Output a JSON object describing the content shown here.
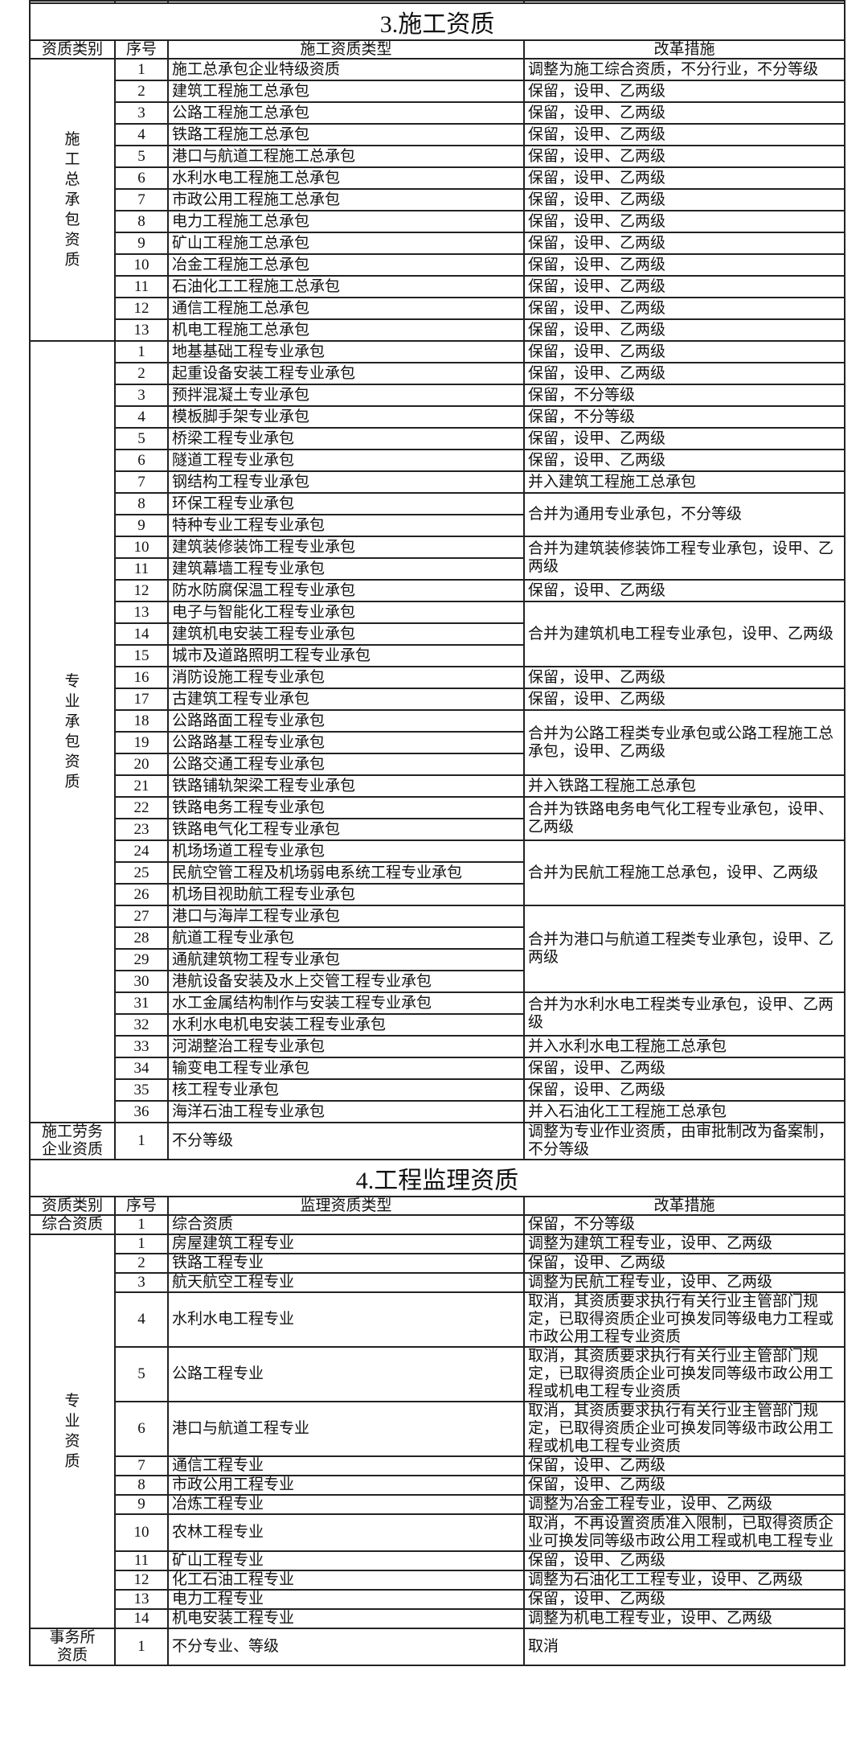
{
  "sections": [
    {
      "title": "3.施工资质",
      "headers": [
        "资质类别",
        "序号",
        "施工资质类型",
        "改革措施"
      ],
      "groups": [
        {
          "category": "施工总承包资质",
          "vertical": true,
          "rows": [
            {
              "no": "1",
              "type": "施工总承包企业特级资质",
              "measure": "调整为施工综合资质，不分行业，不分等级"
            },
            {
              "no": "2",
              "type": "建筑工程施工总承包",
              "measure": "保留，设甲、乙两级"
            },
            {
              "no": "3",
              "type": "公路工程施工总承包",
              "measure": "保留，设甲、乙两级"
            },
            {
              "no": "4",
              "type": "铁路工程施工总承包",
              "measure": "保留，设甲、乙两级"
            },
            {
              "no": "5",
              "type": "港口与航道工程施工总承包",
              "measure": "保留，设甲、乙两级"
            },
            {
              "no": "6",
              "type": "水利水电工程施工总承包",
              "measure": "保留，设甲、乙两级"
            },
            {
              "no": "7",
              "type": "市政公用工程施工总承包",
              "measure": "保留，设甲、乙两级"
            },
            {
              "no": "8",
              "type": "电力工程施工总承包",
              "measure": "保留，设甲、乙两级"
            },
            {
              "no": "9",
              "type": "矿山工程施工总承包",
              "measure": "保留，设甲、乙两级"
            },
            {
              "no": "10",
              "type": "冶金工程施工总承包",
              "measure": "保留，设甲、乙两级"
            },
            {
              "no": "11",
              "type": "石油化工工程施工总承包",
              "measure": "保留，设甲、乙两级"
            },
            {
              "no": "12",
              "type": "通信工程施工总承包",
              "measure": "保留，设甲、乙两级"
            },
            {
              "no": "13",
              "type": "机电工程施工总承包",
              "measure": "保留，设甲、乙两级"
            }
          ]
        },
        {
          "category": "专业承包资质",
          "vertical": true,
          "rows": [
            {
              "no": "1",
              "type": "地基基础工程专业承包",
              "measure": "保留，设甲、乙两级"
            },
            {
              "no": "2",
              "type": "起重设备安装工程专业承包",
              "measure": "保留，设甲、乙两级"
            },
            {
              "no": "3",
              "type": "预拌混凝土专业承包",
              "measure": "保留，不分等级"
            },
            {
              "no": "4",
              "type": "模板脚手架专业承包",
              "measure": "保留，不分等级"
            },
            {
              "no": "5",
              "type": "桥梁工程专业承包",
              "measure": "保留，设甲、乙两级"
            },
            {
              "no": "6",
              "type": "隧道工程专业承包",
              "measure": "保留，设甲、乙两级"
            },
            {
              "no": "7",
              "type": "钢结构工程专业承包",
              "measure": "并入建筑工程施工总承包"
            },
            {
              "no": "8",
              "type": "环保工程专业承包",
              "measure": "合并为通用专业承包，不分等级"
            },
            {
              "no": "9",
              "type": "特种专业工程专业承包"
            },
            {
              "no": "10",
              "type": "建筑装修装饰工程专业承包",
              "measure": "合并为建筑装修装饰工程专业承包，设甲、乙两级"
            },
            {
              "no": "11",
              "type": "建筑幕墙工程专业承包"
            },
            {
              "no": "12",
              "type": "防水防腐保温工程专业承包",
              "measure": "保留，设甲、乙两级"
            },
            {
              "no": "13",
              "type": "电子与智能化工程专业承包",
              "measure": "合并为建筑机电工程专业承包，设甲、乙两级"
            },
            {
              "no": "14",
              "type": "建筑机电安装工程专业承包"
            },
            {
              "no": "15",
              "type": "城市及道路照明工程专业承包"
            },
            {
              "no": "16",
              "type": "消防设施工程专业承包",
              "measure": "保留，设甲、乙两级"
            },
            {
              "no": "17",
              "type": "古建筑工程专业承包",
              "measure": "保留，设甲、乙两级"
            },
            {
              "no": "18",
              "type": "公路路面工程专业承包",
              "measure": "合并为公路工程类专业承包或公路工程施工总承包，设甲、乙两级"
            },
            {
              "no": "19",
              "type": "公路路基工程专业承包"
            },
            {
              "no": "20",
              "type": "公路交通工程专业承包"
            },
            {
              "no": "21",
              "type": "铁路铺轨架梁工程专业承包",
              "measure": "并入铁路工程施工总承包"
            },
            {
              "no": "22",
              "type": "铁路电务工程专业承包",
              "measure": "合并为铁路电务电气化工程专业承包，设甲、乙两级"
            },
            {
              "no": "23",
              "type": "铁路电气化工程专业承包"
            },
            {
              "no": "24",
              "type": "机场场道工程专业承包",
              "measure": "合并为民航工程施工总承包，设甲、乙两级"
            },
            {
              "no": "25",
              "type": "民航空管工程及机场弱电系统工程专业承包"
            },
            {
              "no": "26",
              "type": "机场目视助航工程专业承包"
            },
            {
              "no": "27",
              "type": "港口与海岸工程专业承包",
              "measure": "合并为港口与航道工程类专业承包，设甲、乙两级"
            },
            {
              "no": "28",
              "type": "航道工程专业承包"
            },
            {
              "no": "29",
              "type": "通航建筑物工程专业承包"
            },
            {
              "no": "30",
              "type": "港航设备安装及水上交管工程专业承包"
            },
            {
              "no": "31",
              "type": "水工金属结构制作与安装工程专业承包",
              "measure": "合并为水利水电工程类专业承包，设甲、乙两级"
            },
            {
              "no": "32",
              "type": "水利水电机电安装工程专业承包"
            },
            {
              "no": "33",
              "type": "河湖整治工程专业承包",
              "measure": "并入水利水电工程施工总承包"
            },
            {
              "no": "34",
              "type": "输变电工程专业承包",
              "measure": "保留，设甲、乙两级"
            },
            {
              "no": "35",
              "type": "核工程专业承包",
              "measure": "保留，设甲、乙两级"
            },
            {
              "no": "36",
              "type": "海洋石油工程专业承包",
              "measure": "并入石油化工工程施工总承包"
            }
          ]
        },
        {
          "category": "施工劳务\n企业资质",
          "vertical": false,
          "rows": [
            {
              "no": "1",
              "type": "不分等级",
              "measure": "调整为专业作业资质，由审批制改为备案制，不分等级"
            }
          ]
        }
      ]
    },
    {
      "title": "4.工程监理资质",
      "headers": [
        "资质类别",
        "序号",
        "监理资质类型",
        "改革措施"
      ],
      "groups": [
        {
          "category": "综合资质",
          "vertical": false,
          "rows": [
            {
              "no": "1",
              "type": "综合资质",
              "measure": "保留，不分等级"
            }
          ]
        },
        {
          "category": "专业资质",
          "vertical": true,
          "rows": [
            {
              "no": "1",
              "type": "房屋建筑工程专业",
              "measure": "调整为建筑工程专业，设甲、乙两级"
            },
            {
              "no": "2",
              "type": "铁路工程专业",
              "measure": "保留，设甲、乙两级"
            },
            {
              "no": "3",
              "type": "航天航空工程专业",
              "measure": "调整为民航工程专业，设甲、乙两级"
            },
            {
              "no": "4",
              "type": "水利水电工程专业",
              "measure": "取消，其资质要求执行有关行业主管部门规定，已取得资质企业可换发同等级电力工程或市政公用工程专业资质"
            },
            {
              "no": "5",
              "type": "公路工程专业",
              "measure": "取消，其资质要求执行有关行业主管部门规定，已取得资质企业可换发同等级市政公用工程或机电工程专业资质"
            },
            {
              "no": "6",
              "type": "港口与航道工程专业",
              "measure": "取消，其资质要求执行有关行业主管部门规定，已取得资质企业可换发同等级市政公用工程或机电工程专业资质"
            },
            {
              "no": "7",
              "type": "通信工程专业",
              "measure": "保留，设甲、乙两级"
            },
            {
              "no": "8",
              "type": "市政公用工程专业",
              "measure": "保留，设甲、乙两级"
            },
            {
              "no": "9",
              "type": "冶炼工程专业",
              "measure": "调整为冶金工程专业，设甲、乙两级"
            },
            {
              "no": "10",
              "type": "农林工程专业",
              "measure": "取消，不再设置资质准入限制，已取得资质企业可换发同等级市政公用工程或机电工程专业"
            },
            {
              "no": "11",
              "type": "矿山工程专业",
              "measure": "保留，设甲、乙两级"
            },
            {
              "no": "12",
              "type": "化工石油工程专业",
              "measure": "调整为石油化工工程专业，设甲、乙两级"
            },
            {
              "no": "13",
              "type": "电力工程专业",
              "measure": "保留，设甲、乙两级"
            },
            {
              "no": "14",
              "type": "机电安装工程专业",
              "measure": "调整为机电工程专业，设甲、乙两级"
            }
          ]
        },
        {
          "category": "事务所\n资质",
          "vertical": false,
          "rows": [
            {
              "no": "1",
              "type": "不分专业、等级",
              "measure": "取消"
            }
          ]
        }
      ]
    }
  ]
}
